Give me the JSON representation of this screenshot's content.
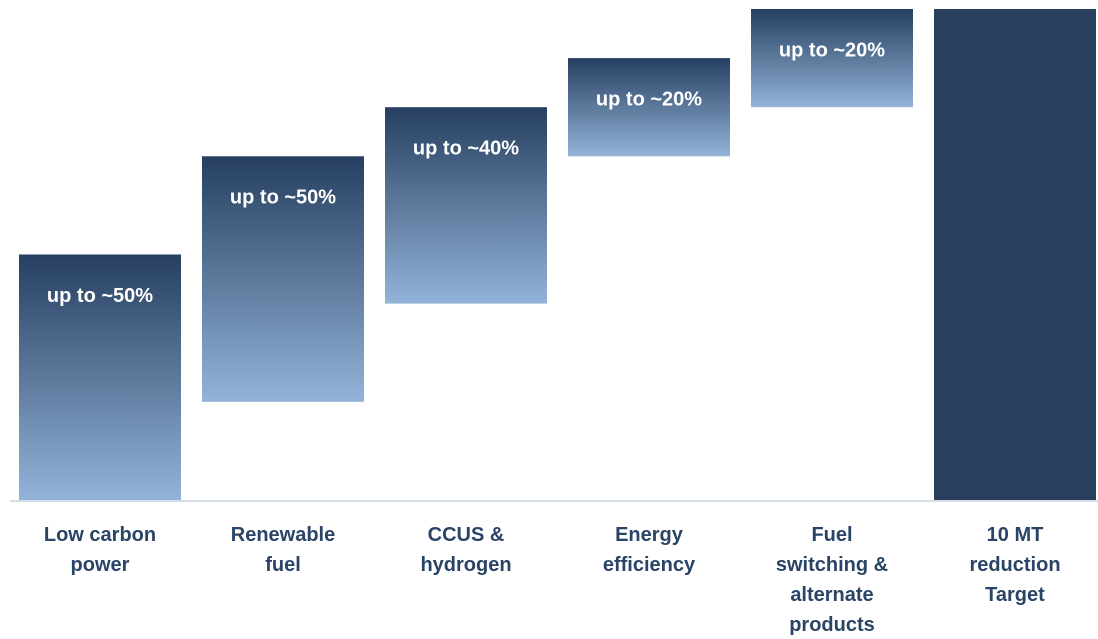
{
  "chart_data": {
    "type": "floating_bar",
    "categories": [
      "Low carbon power",
      "Renewable fuel",
      "CCUS & hydrogen",
      "Energy efficiency",
      "Fuel switching & alternate products",
      "10 MT reduction Target"
    ],
    "starts": [
      0,
      20,
      40,
      70,
      80,
      0
    ],
    "values": [
      50,
      50,
      40,
      20,
      20,
      100
    ],
    "value_labels": [
      "up to ~50%",
      "up to ~50%",
      "up to ~40%",
      "up to ~20%",
      "up to ~20%",
      null
    ],
    "gradient": [
      "#263f60",
      "#93b3d8"
    ],
    "total_color": "#28405e",
    "ylim": [
      0,
      100
    ]
  }
}
